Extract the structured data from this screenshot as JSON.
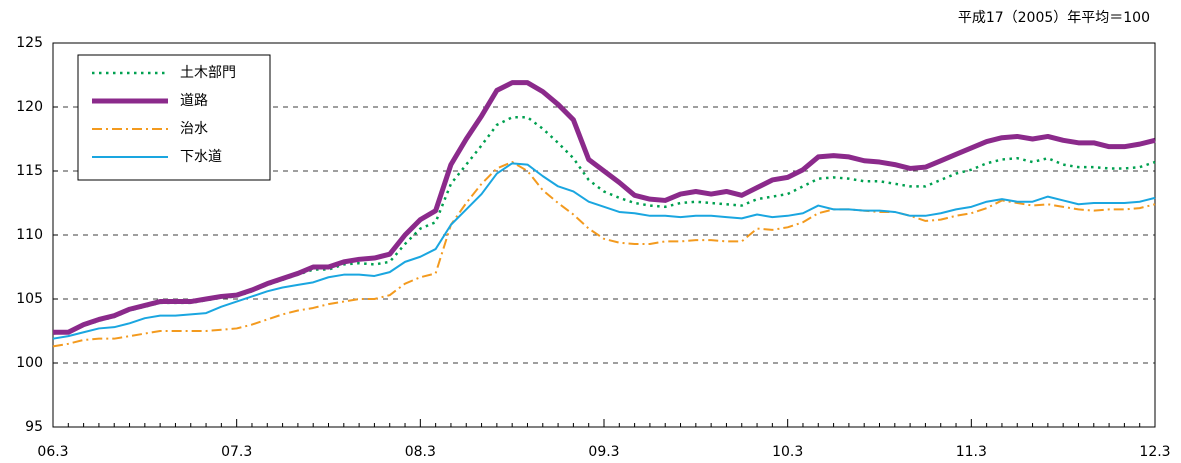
{
  "chart_data": {
    "type": "line",
    "note": "平成17（2005）年平均＝100",
    "categories": [
      "06.3",
      null,
      null,
      null,
      null,
      null,
      null,
      null,
      null,
      null,
      null,
      null,
      "07.3",
      null,
      null,
      null,
      null,
      null,
      null,
      null,
      null,
      null,
      null,
      null,
      "08.3",
      null,
      null,
      null,
      null,
      null,
      null,
      null,
      null,
      null,
      null,
      null,
      "09.3",
      null,
      null,
      null,
      null,
      null,
      null,
      null,
      null,
      null,
      null,
      null,
      "10.3",
      null,
      null,
      null,
      null,
      null,
      null,
      null,
      null,
      null,
      null,
      null,
      "11.3",
      null,
      null,
      null,
      null,
      null,
      null,
      null,
      null,
      null,
      null,
      null,
      "12.3"
    ],
    "ylim": [
      95,
      125
    ],
    "yticks": [
      95,
      100,
      105,
      110,
      115,
      120,
      125
    ],
    "grid": true,
    "legend": "top-left",
    "series": [
      {
        "name": "土木部門",
        "color": "#00a050",
        "style": "dotted",
        "values": [
          102.3,
          102.4,
          102.9,
          103.3,
          103.6,
          104.1,
          104.4,
          104.7,
          104.7,
          104.7,
          104.9,
          105.1,
          105.2,
          105.6,
          106.1,
          106.5,
          106.9,
          107.3,
          107.3,
          107.7,
          107.8,
          107.7,
          107.9,
          109.3,
          110.5,
          111.0,
          114.0,
          115.5,
          117.0,
          118.6,
          119.2,
          119.2,
          118.3,
          117.2,
          116.0,
          114.3,
          113.4,
          112.9,
          112.5,
          112.3,
          112.2,
          112.5,
          112.6,
          112.5,
          112.4,
          112.3,
          112.8,
          113.0,
          113.2,
          113.8,
          114.4,
          114.5,
          114.4,
          114.2,
          114.2,
          114.0,
          113.8,
          113.8,
          114.3,
          114.8,
          115.1,
          115.6,
          115.9,
          116.0,
          115.7,
          116.0,
          115.5,
          115.3,
          115.3,
          115.2,
          115.2,
          115.3,
          115.7
        ]
      },
      {
        "name": "道路",
        "color": "#8b2a8b",
        "style": "thick",
        "values": [
          102.4,
          102.4,
          103.0,
          103.4,
          103.7,
          104.2,
          104.5,
          104.8,
          104.8,
          104.8,
          105.0,
          105.2,
          105.3,
          105.7,
          106.2,
          106.6,
          107.0,
          107.5,
          107.5,
          107.9,
          108.1,
          108.2,
          108.5,
          110.0,
          111.2,
          111.9,
          115.5,
          117.5,
          119.3,
          121.3,
          121.9,
          121.9,
          121.2,
          120.2,
          119.0,
          115.9,
          115.0,
          114.1,
          113.1,
          112.8,
          112.7,
          113.2,
          113.4,
          113.2,
          113.4,
          113.1,
          113.7,
          114.3,
          114.5,
          115.1,
          116.1,
          116.2,
          116.1,
          115.8,
          115.7,
          115.5,
          115.2,
          115.3,
          115.8,
          116.3,
          116.8,
          117.3,
          117.6,
          117.7,
          117.5,
          117.7,
          117.4,
          117.2,
          117.2,
          116.9,
          116.9,
          117.1,
          117.4
        ]
      },
      {
        "name": "治水",
        "color": "#f39a1e",
        "style": "dashdot",
        "values": [
          101.3,
          101.5,
          101.8,
          101.9,
          101.9,
          102.1,
          102.3,
          102.5,
          102.5,
          102.5,
          102.5,
          102.6,
          102.7,
          103.0,
          103.4,
          103.8,
          104.1,
          104.3,
          104.6,
          104.8,
          105.0,
          105.0,
          105.3,
          106.2,
          106.7,
          107.0,
          110.8,
          112.5,
          114.0,
          115.2,
          115.7,
          115.0,
          113.5,
          112.5,
          111.6,
          110.5,
          109.7,
          109.4,
          109.3,
          109.3,
          109.5,
          109.5,
          109.6,
          109.6,
          109.5,
          109.5,
          110.5,
          110.4,
          110.6,
          111.0,
          111.7,
          112.0,
          112.0,
          111.9,
          111.8,
          111.8,
          111.5,
          111.1,
          111.2,
          111.5,
          111.7,
          112.1,
          112.7,
          112.5,
          112.3,
          112.4,
          112.2,
          112.0,
          111.9,
          112.0,
          112.0,
          112.1,
          112.4
        ]
      },
      {
        "name": "下水道",
        "color": "#1aa6e0",
        "style": "solid",
        "values": [
          101.9,
          102.1,
          102.4,
          102.7,
          102.8,
          103.1,
          103.5,
          103.7,
          103.7,
          103.8,
          103.9,
          104.4,
          104.8,
          105.2,
          105.6,
          105.9,
          106.1,
          106.3,
          106.7,
          106.9,
          106.9,
          106.8,
          107.1,
          107.9,
          108.3,
          108.9,
          110.8,
          112.0,
          113.2,
          114.8,
          115.6,
          115.5,
          114.6,
          113.8,
          113.4,
          112.6,
          112.2,
          111.8,
          111.7,
          111.5,
          111.5,
          111.4,
          111.5,
          111.5,
          111.4,
          111.3,
          111.6,
          111.4,
          111.5,
          111.7,
          112.3,
          112.0,
          112.0,
          111.9,
          111.9,
          111.8,
          111.5,
          111.5,
          111.7,
          112.0,
          112.2,
          112.6,
          112.8,
          112.6,
          112.6,
          113.0,
          112.7,
          112.4,
          112.5,
          112.5,
          112.5,
          112.6,
          112.9
        ]
      }
    ]
  }
}
